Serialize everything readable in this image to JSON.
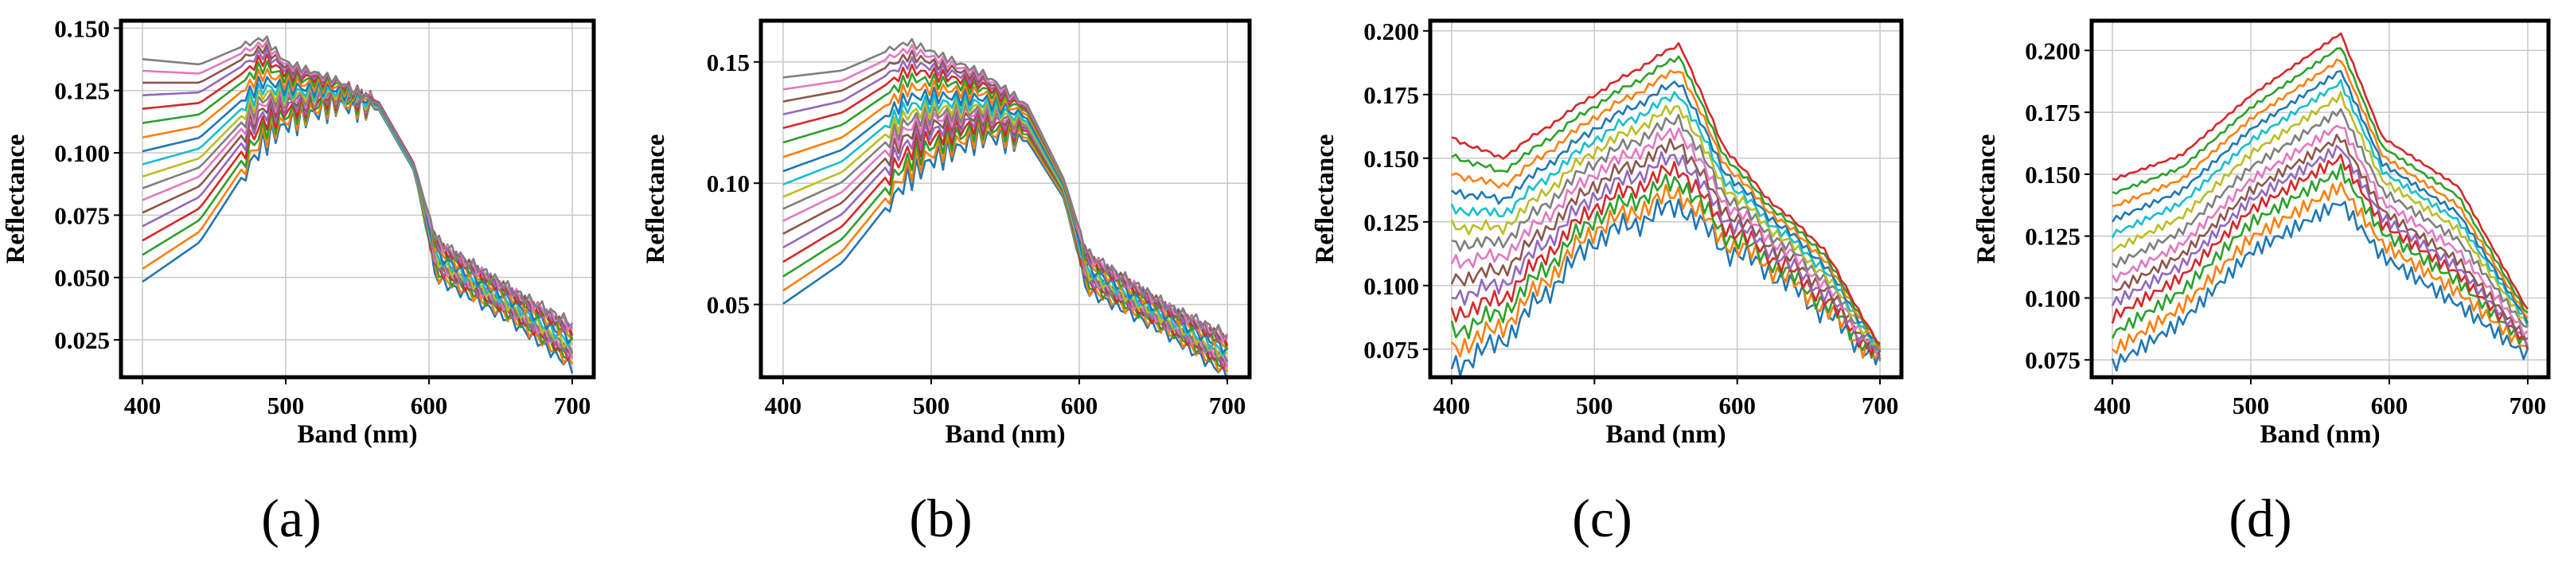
{
  "chart_data": [
    {
      "type": "line",
      "panel_label": "(a)",
      "xlabel": "Band (nm)",
      "ylabel": "Reflectance",
      "xlim": [
        385,
        715
      ],
      "ylim": [
        0.01,
        0.153
      ],
      "grid": true,
      "xticks": [
        400,
        500,
        600,
        700
      ],
      "xtick_labels": [
        "400",
        "500",
        "600",
        "700"
      ],
      "yticks": [
        0.025,
        0.05,
        0.075,
        0.1,
        0.125,
        0.15
      ],
      "ytick_labels": [
        "0.025",
        "0.050",
        "0.075",
        "0.100",
        "0.125",
        "0.150"
      ],
      "series_count": 18,
      "shape": "a",
      "top_curve": {
        "x": [
          400,
          440,
          485,
          500,
          535,
          565,
          590,
          605,
          625,
          660,
          700
        ],
        "y": [
          0.138,
          0.136,
          0.147,
          0.137,
          0.13,
          0.12,
          0.095,
          0.066,
          0.058,
          0.045,
          0.032
        ]
      },
      "bottom_curve": {
        "x": [
          400,
          440,
          485,
          500,
          535,
          565,
          590,
          605,
          625,
          660,
          700
        ],
        "y": [
          0.049,
          0.065,
          0.105,
          0.112,
          0.12,
          0.118,
          0.093,
          0.05,
          0.044,
          0.032,
          0.014
        ]
      }
    },
    {
      "type": "line",
      "panel_label": "(b)",
      "xlabel": "Band (nm)",
      "ylabel": "Reflectance",
      "xlim": [
        385,
        715
      ],
      "ylim": [
        0.02,
        0.167
      ],
      "grid": true,
      "xticks": [
        400,
        500,
        600,
        700
      ],
      "xtick_labels": [
        "400",
        "500",
        "600",
        "700"
      ],
      "yticks": [
        0.05,
        0.1,
        0.15
      ],
      "ytick_labels": [
        "0.05",
        "0.10",
        "0.15"
      ],
      "series_count": 18,
      "shape": "a",
      "top_curve": {
        "x": [
          400,
          440,
          485,
          500,
          535,
          565,
          590,
          605,
          625,
          660,
          700
        ],
        "y": [
          0.144,
          0.147,
          0.159,
          0.155,
          0.146,
          0.133,
          0.102,
          0.072,
          0.064,
          0.05,
          0.038
        ]
      },
      "bottom_curve": {
        "x": [
          400,
          440,
          485,
          500,
          535,
          565,
          590,
          605,
          625,
          660,
          700
        ],
        "y": [
          0.051,
          0.068,
          0.103,
          0.11,
          0.12,
          0.118,
          0.094,
          0.056,
          0.05,
          0.038,
          0.021
        ]
      }
    },
    {
      "type": "line",
      "panel_label": "(c)",
      "xlabel": "Band (nm)",
      "ylabel": "Reflectance",
      "xlim": [
        385,
        715
      ],
      "ylim": [
        0.064,
        0.204
      ],
      "grid": true,
      "xticks": [
        400,
        500,
        600,
        700
      ],
      "xtick_labels": [
        "400",
        "500",
        "600",
        "700"
      ],
      "yticks": [
        0.075,
        0.1,
        0.125,
        0.15,
        0.175,
        0.2
      ],
      "ytick_labels": [
        "0.075",
        "0.100",
        "0.125",
        "0.150",
        "0.175",
        "0.200"
      ],
      "series_count": 14,
      "shape": "c",
      "top_curve": {
        "x": [
          400,
          435,
          500,
          560,
          590,
          620,
          660,
          700
        ],
        "y": [
          0.158,
          0.15,
          0.175,
          0.195,
          0.155,
          0.135,
          0.115,
          0.076
        ]
      },
      "bottom_curve": {
        "x": [
          400,
          435,
          500,
          560,
          590,
          620,
          660,
          700
        ],
        "y": [
          0.068,
          0.078,
          0.118,
          0.132,
          0.115,
          0.107,
          0.09,
          0.07
        ]
      }
    },
    {
      "type": "line",
      "panel_label": "(d)",
      "xlabel": "Band (nm)",
      "ylabel": "Reflectance",
      "xlim": [
        385,
        715
      ],
      "ylim": [
        0.068,
        0.212
      ],
      "grid": true,
      "xticks": [
        400,
        500,
        600,
        700
      ],
      "xtick_labels": [
        "400",
        "500",
        "600",
        "700"
      ],
      "yticks": [
        0.075,
        0.1,
        0.125,
        0.15,
        0.175,
        0.2
      ],
      "ytick_labels": [
        "0.075",
        "0.100",
        "0.125",
        "0.150",
        "0.175",
        "0.200"
      ],
      "series_count": 14,
      "shape": "d",
      "top_curve": {
        "x": [
          400,
          450,
          500,
          565,
          595,
          650,
          700
        ],
        "y": [
          0.148,
          0.158,
          0.182,
          0.207,
          0.165,
          0.145,
          0.095
        ]
      },
      "bottom_curve": {
        "x": [
          400,
          450,
          500,
          565,
          595,
          650,
          700
        ],
        "y": [
          0.074,
          0.092,
          0.12,
          0.14,
          0.118,
          0.098,
          0.077
        ]
      }
    }
  ],
  "colors": [
    "#1f77b4",
    "#ff7f0e",
    "#2ca02c",
    "#d62728",
    "#9467bd",
    "#8c564b",
    "#e377c2",
    "#7f7f7f",
    "#bcbd22",
    "#17becf"
  ]
}
